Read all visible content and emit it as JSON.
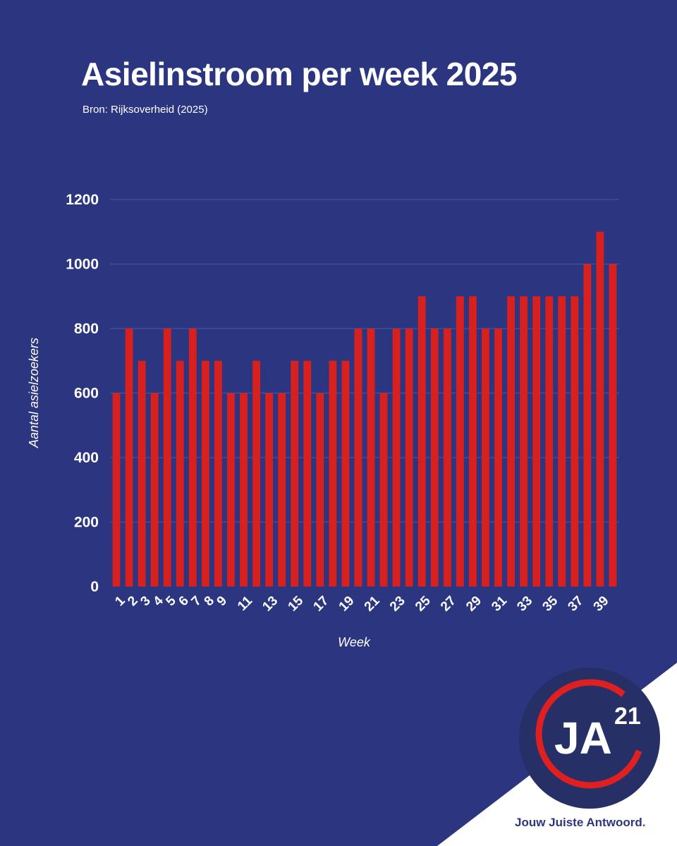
{
  "title": "Asielinstroom per week 2025",
  "subtitle": "Bron: Rijksoverheid (2025)",
  "colors": {
    "background": "#2c3580",
    "bar": "#d8201e",
    "text": "#ffffff",
    "logo_ring": "#e02020"
  },
  "chart_data": {
    "type": "bar",
    "title": "Asielinstroom per week 2025",
    "xlabel": "Week",
    "ylabel": "Aantal asielzoekers",
    "ylim": [
      0,
      1200
    ],
    "yticks": [
      0,
      200,
      400,
      600,
      800,
      1000,
      1200
    ],
    "grid": true,
    "categories": [
      "1",
      "2",
      "3",
      "4",
      "5",
      "6",
      "7",
      "8",
      "9",
      "10",
      "11",
      "12",
      "13",
      "14",
      "15",
      "16",
      "17",
      "18",
      "19",
      "20",
      "21",
      "22",
      "23",
      "24",
      "25",
      "26",
      "27",
      "28",
      "29",
      "30",
      "31",
      "32",
      "33",
      "34",
      "35",
      "36",
      "37",
      "38",
      "39",
      "40"
    ],
    "shown_xtick_labels": [
      "1",
      "2",
      "3",
      "4",
      "5",
      "6",
      "7",
      "8",
      "9",
      "11",
      "13",
      "15",
      "17",
      "19",
      "21",
      "23",
      "25",
      "27",
      "29",
      "31",
      "33",
      "35",
      "37",
      "39"
    ],
    "values": [
      600,
      800,
      700,
      600,
      800,
      700,
      800,
      700,
      700,
      600,
      600,
      700,
      600,
      600,
      700,
      700,
      600,
      700,
      700,
      800,
      800,
      600,
      800,
      800,
      900,
      800,
      800,
      900,
      900,
      800,
      800,
      900,
      900,
      900,
      900,
      900,
      900,
      1000,
      1100,
      1000
    ]
  },
  "logo": {
    "text_main": "JA",
    "text_sup": "21"
  },
  "tagline": {
    "text": "Jouw Juiste Antwoord",
    "dot": "."
  }
}
